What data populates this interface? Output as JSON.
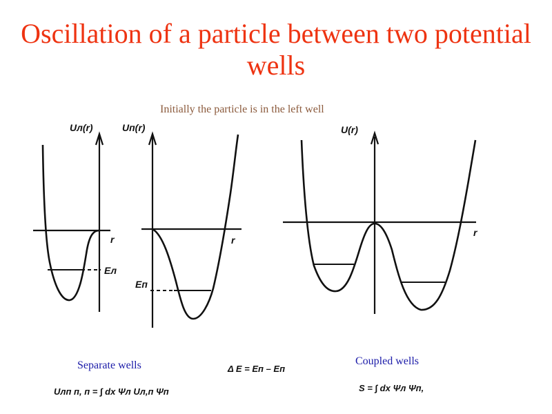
{
  "title": "Oscillation of a particle between two potential wells",
  "subtitle": "Initially the particle is in the left well",
  "panels": {
    "left_well": {
      "axis_label": "Uл(r)",
      "r_label": "r",
      "level_label": "Eл"
    },
    "right_well": {
      "axis_label": "Uп(r)",
      "r_label": "r",
      "level_label": "Eп"
    },
    "coupled": {
      "axis_label": "U(r)",
      "r_label": "r"
    }
  },
  "captions": {
    "separate": "Separate wells",
    "coupled": "Coupled wells"
  },
  "formulas": {
    "matrix_element": "Uлп п, п = ∫ dx Ψл Uл,п Ψп",
    "energy_difference": "Δ  E = Eп – Eп",
    "overlap": "S = ∫ dx Ψл Ψп,"
  }
}
